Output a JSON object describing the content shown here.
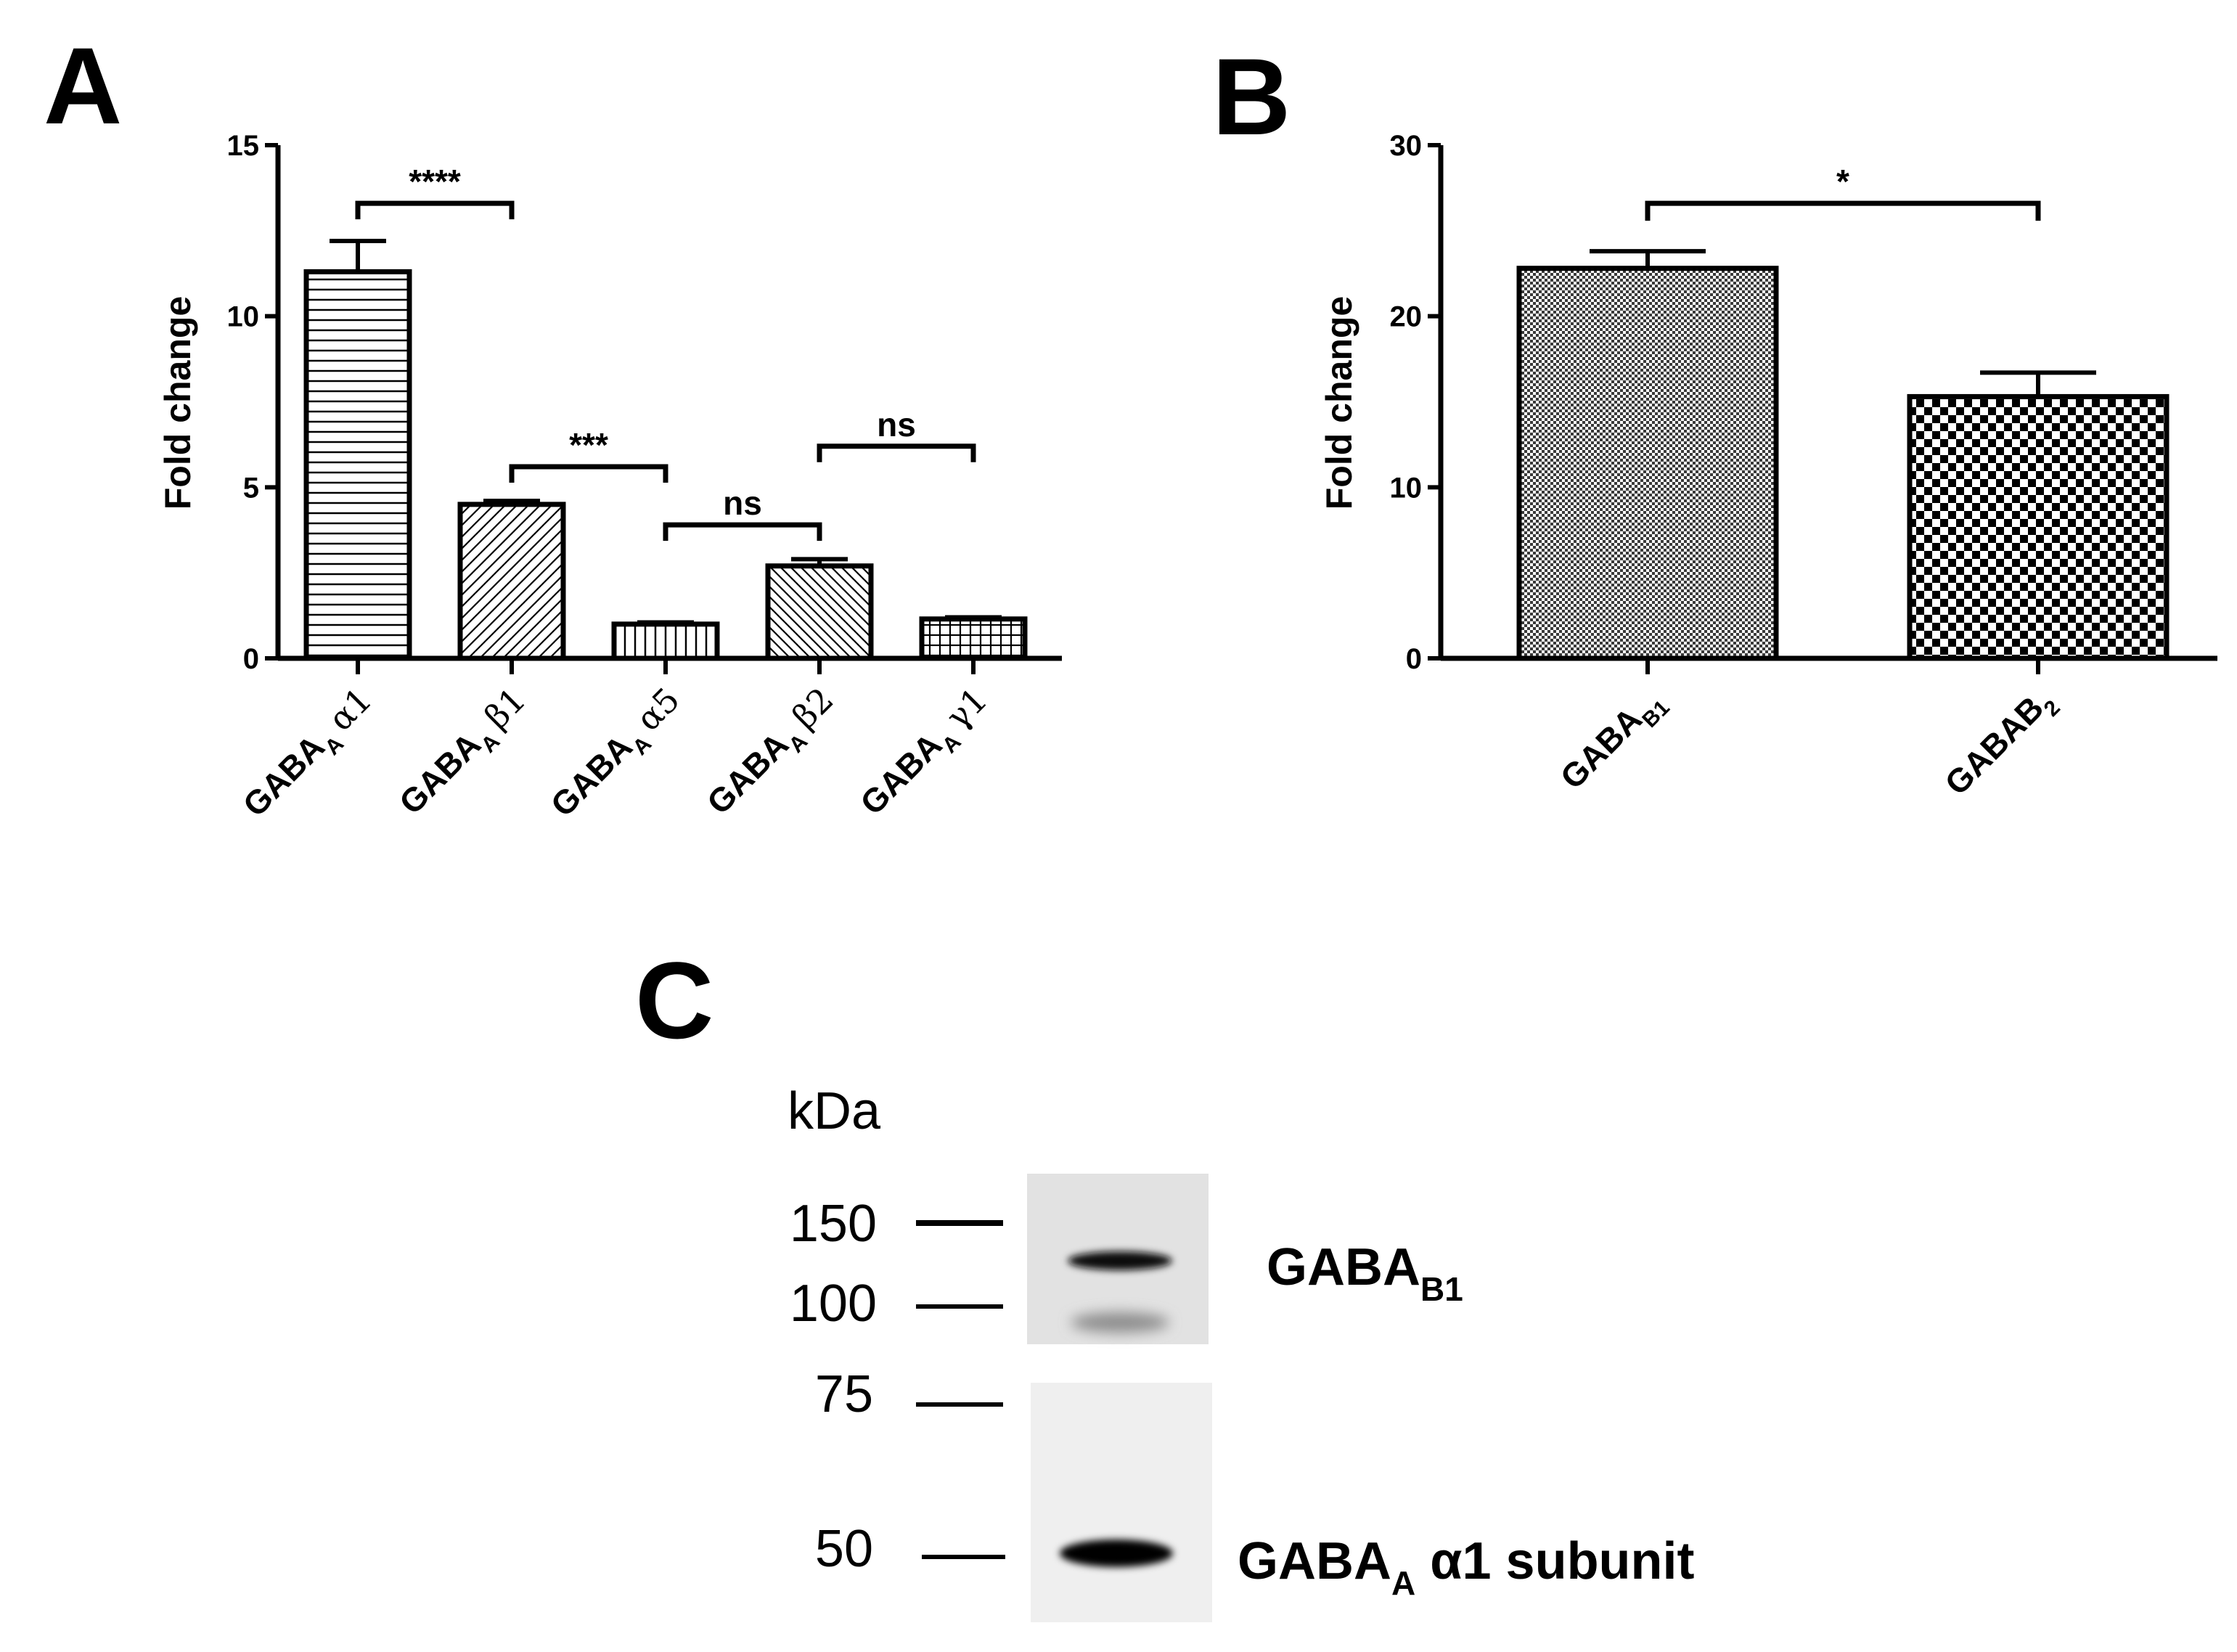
{
  "panels": {
    "a": "A",
    "b": "B",
    "c": "C"
  },
  "chart_data": [
    {
      "type": "bar",
      "panel": "A",
      "ylabel": "Fold change",
      "ylim": [
        0,
        15
      ],
      "yticks": [
        "0",
        "5",
        "10",
        "15"
      ],
      "categories": [
        {
          "main": "GABA",
          "sub": "A",
          "greek": "α1"
        },
        {
          "main": "GABA",
          "sub": "A",
          "greek": "β1"
        },
        {
          "main": "GABA",
          "sub": "A",
          "greek": "α5"
        },
        {
          "main": "GABA",
          "sub": "A",
          "greek": "β2"
        },
        {
          "main": "GABA",
          "sub": "A",
          "greek": "γ1"
        }
      ],
      "values": [
        11.3,
        4.5,
        1.0,
        2.7,
        1.15
      ],
      "errors": [
        0.9,
        0.1,
        0.05,
        0.2,
        0.05
      ],
      "patterns": [
        "hlines",
        "diag-right",
        "vlines",
        "diag-left",
        "grid"
      ],
      "comparisons": [
        {
          "from": 0,
          "to": 1,
          "label": "****",
          "y": 13.3
        },
        {
          "from": 1,
          "to": 2,
          "label": "***",
          "y": 5.6
        },
        {
          "from": 2,
          "to": 3,
          "label": "ns",
          "y": 3.9
        },
        {
          "from": 3,
          "to": 4,
          "label": "ns",
          "y": 6.2
        }
      ]
    },
    {
      "type": "bar",
      "panel": "B",
      "ylabel": "Fold change",
      "ylim": [
        0,
        30
      ],
      "yticks": [
        "0",
        "10",
        "20",
        "30"
      ],
      "categories": [
        {
          "main": "GABA",
          "sub": "B1"
        },
        {
          "main": "GABAB",
          "sub": "2"
        }
      ],
      "values": [
        22.8,
        15.3
      ],
      "errors": [
        1.0,
        1.4
      ],
      "patterns": [
        "fine-check",
        "coarse-check"
      ],
      "comparisons": [
        {
          "from": 0,
          "to": 1,
          "label": "*",
          "y": 26.6
        }
      ]
    }
  ],
  "blot": {
    "unit_label": "kDa",
    "markers": [
      "150",
      "100",
      "75",
      "50"
    ],
    "band_labels": [
      {
        "main": "GABA",
        "sub": "B1",
        "rest": ""
      },
      {
        "main": "GABA",
        "sub": "A",
        "rest": " α1 subunit"
      }
    ]
  }
}
